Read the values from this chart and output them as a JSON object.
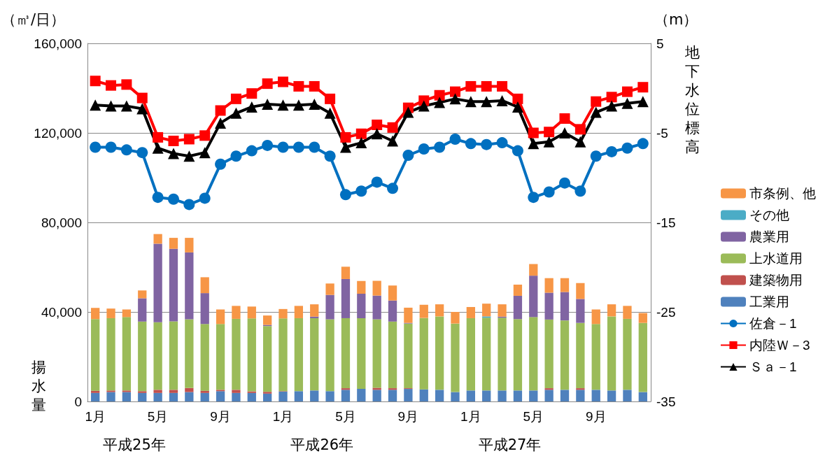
{
  "chart_data": {
    "type": "bar",
    "stacked": true,
    "ylabel": "揚水量",
    "y2label": "地下水位標高",
    "annotations": [
      "（㎥/日）",
      "（m）",
      "平成25年",
      "平成26年",
      "平成27年"
    ],
    "categories": [
      "1月",
      null,
      null,
      null,
      "5月",
      null,
      null,
      null,
      "9月",
      null,
      null,
      null,
      "1月",
      null,
      null,
      null,
      "5月",
      null,
      null,
      null,
      "9月",
      null,
      null,
      null,
      "1月",
      null,
      null,
      null,
      "5月",
      null,
      null,
      null,
      "9月",
      null,
      null,
      null
    ],
    "ylim": [
      0,
      160000
    ],
    "yticks": [
      {
        "value": 0,
        "label": "0"
      },
      {
        "value": 40000,
        "label": "40,000"
      },
      {
        "value": 80000,
        "label": "80,000"
      },
      {
        "value": 120000,
        "label": "120,000"
      },
      {
        "value": 160000,
        "label": "160,000"
      }
    ],
    "y2lim": [
      -35,
      5
    ],
    "y2ticks": [
      -35,
      -25,
      -15,
      -5,
      5
    ],
    "grid": "y",
    "legend": "right",
    "series": [
      {
        "name": "工業用",
        "color": "#4f81bd",
        "values": [
          3800,
          4200,
          4200,
          3800,
          3800,
          3800,
          4200,
          3800,
          4600,
          3800,
          3800,
          3500,
          4400,
          4600,
          4900,
          4600,
          5200,
          5600,
          5200,
          5200,
          5600,
          5400,
          5200,
          4200,
          4900,
          4900,
          4900,
          4900,
          4900,
          5200,
          5200,
          5200,
          5200,
          4900,
          5200,
          4200
        ]
      },
      {
        "name": "建築物用",
        "color": "#c0504d",
        "values": [
          1000,
          700,
          700,
          800,
          1400,
          1400,
          1800,
          1000,
          600,
          1400,
          700,
          800,
          200,
          0,
          0,
          0,
          700,
          0,
          900,
          700,
          300,
          0,
          0,
          0,
          0,
          0,
          0,
          0,
          0,
          700,
          0,
          700,
          0,
          0,
          0,
          0
        ]
      },
      {
        "name": "上水道用",
        "color": "#9bbb59",
        "values": [
          32000,
          32300,
          32800,
          31100,
          30200,
          30600,
          30700,
          29800,
          29400,
          31700,
          32600,
          29400,
          32500,
          32600,
          32300,
          32100,
          31300,
          31600,
          30600,
          29800,
          28900,
          31900,
          32800,
          30600,
          32300,
          32500,
          32500,
          31900,
          32800,
          30700,
          31000,
          29200,
          29400,
          33100,
          31700,
          30900
        ]
      },
      {
        "name": "農業用",
        "color": "#8064a2",
        "values": [
          0,
          0,
          0,
          10400,
          35100,
          32400,
          29900,
          13800,
          0,
          0,
          0,
          500,
          0,
          0,
          700,
          10900,
          17500,
          10900,
          10600,
          9400,
          300,
          0,
          0,
          0,
          0,
          0,
          500,
          10400,
          18500,
          12000,
          12700,
          10700,
          0,
          0,
          0,
          0
        ]
      },
      {
        "name": "その他",
        "color": "#4bacc6",
        "values": [
          0,
          0,
          0,
          0,
          0,
          0,
          0,
          0,
          0,
          0,
          0,
          0,
          0,
          0,
          0,
          0,
          0,
          0,
          0,
          0,
          0,
          0,
          0,
          0,
          0,
          600,
          0,
          0,
          0,
          0,
          0,
          0,
          0,
          0,
          0,
          0
        ]
      },
      {
        "name": "市条例、他",
        "color": "#f79646",
        "values": [
          5000,
          4300,
          3400,
          3500,
          4300,
          4900,
          6500,
          7100,
          6500,
          5800,
          5300,
          4200,
          4200,
          5500,
          5500,
          5100,
          5500,
          5700,
          6600,
          6700,
          6800,
          5900,
          5400,
          5200,
          5000,
          5700,
          5500,
          5000,
          5200,
          6500,
          6200,
          7100,
          6500,
          5400,
          5800,
          4400
        ]
      },
      {
        "name": "佐倉－1",
        "type": "line",
        "axis": "y2",
        "marker": "circle",
        "color": "#0070c0",
        "values": [
          -6.6,
          -6.6,
          -6.9,
          -7.2,
          -12.2,
          -12.4,
          -13.0,
          -12.3,
          -8.5,
          -7.6,
          -7.0,
          -6.4,
          -6.6,
          -6.6,
          -6.6,
          -7.6,
          -11.9,
          -11.5,
          -10.5,
          -11.2,
          -7.5,
          -6.8,
          -6.6,
          -5.7,
          -6.2,
          -6.3,
          -6.1,
          -7.0,
          -12.2,
          -11.6,
          -10.6,
          -11.5,
          -7.6,
          -7.1,
          -6.7,
          -6.2
        ]
      },
      {
        "name": "内陸Ｗ－3",
        "type": "line",
        "axis": "y2",
        "marker": "square",
        "color": "#ff0000",
        "values": [
          0.8,
          0.3,
          0.4,
          -1.1,
          -5.5,
          -5.9,
          -5.7,
          -5.3,
          -2.5,
          -1.2,
          -0.6,
          0.5,
          0.7,
          0.2,
          0.2,
          -1.2,
          -5.5,
          -5.1,
          -4.1,
          -4.4,
          -2.2,
          -1.4,
          -0.8,
          -0.4,
          0.2,
          0.2,
          0.2,
          -1.2,
          -5.0,
          -4.9,
          -3.4,
          -4.6,
          -1.5,
          -1.0,
          -0.4,
          0.1
        ]
      },
      {
        "name": "Ｓａ－1",
        "type": "line",
        "axis": "y2",
        "marker": "triangle",
        "color": "#000000",
        "values": [
          -1.9,
          -2.0,
          -2.0,
          -2.3,
          -6.7,
          -7.3,
          -7.6,
          -7.2,
          -3.9,
          -2.8,
          -2.1,
          -1.8,
          -1.9,
          -1.9,
          -1.8,
          -2.8,
          -6.6,
          -6.1,
          -5.1,
          -5.9,
          -2.7,
          -2.0,
          -1.6,
          -1.2,
          -1.5,
          -1.5,
          -1.4,
          -2.1,
          -6.2,
          -6.0,
          -5.0,
          -6.0,
          -2.7,
          -2.0,
          -1.7,
          -1.5
        ]
      }
    ]
  }
}
